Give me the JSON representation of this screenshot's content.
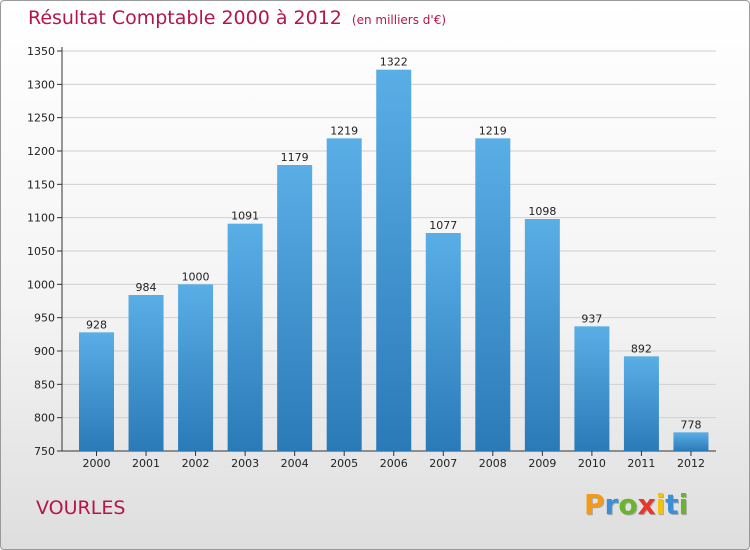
{
  "chart_data": {
    "type": "bar",
    "title": "Résultat Comptable 2000 à 2012",
    "subtitle": "(en milliers d'€)",
    "categories": [
      "2000",
      "2001",
      "2002",
      "2003",
      "2004",
      "2005",
      "2006",
      "2007",
      "2008",
      "2009",
      "2010",
      "2011",
      "2012"
    ],
    "values": [
      928,
      984,
      1000,
      1091,
      1179,
      1219,
      1322,
      1077,
      1219,
      1098,
      937,
      892,
      778
    ],
    "ylim": [
      750,
      1350
    ],
    "yticks": [
      750,
      800,
      850,
      900,
      950,
      1000,
      1050,
      1100,
      1150,
      1200,
      1250,
      1300,
      1350
    ],
    "xlabel": "",
    "ylabel": "",
    "grid": true,
    "bar_color_top": "#5aaee6",
    "bar_color_bottom": "#2a7ab8"
  },
  "location": "VOURLES",
  "brand": {
    "letters": [
      "P",
      "r",
      "o",
      "x",
      "i",
      "t",
      "i"
    ],
    "colors": [
      "#f29a1a",
      "#3a8fd6",
      "#6ab42d",
      "#e8372a",
      "#f4c20d",
      "#3a8fd6",
      "#6ab42d"
    ]
  }
}
